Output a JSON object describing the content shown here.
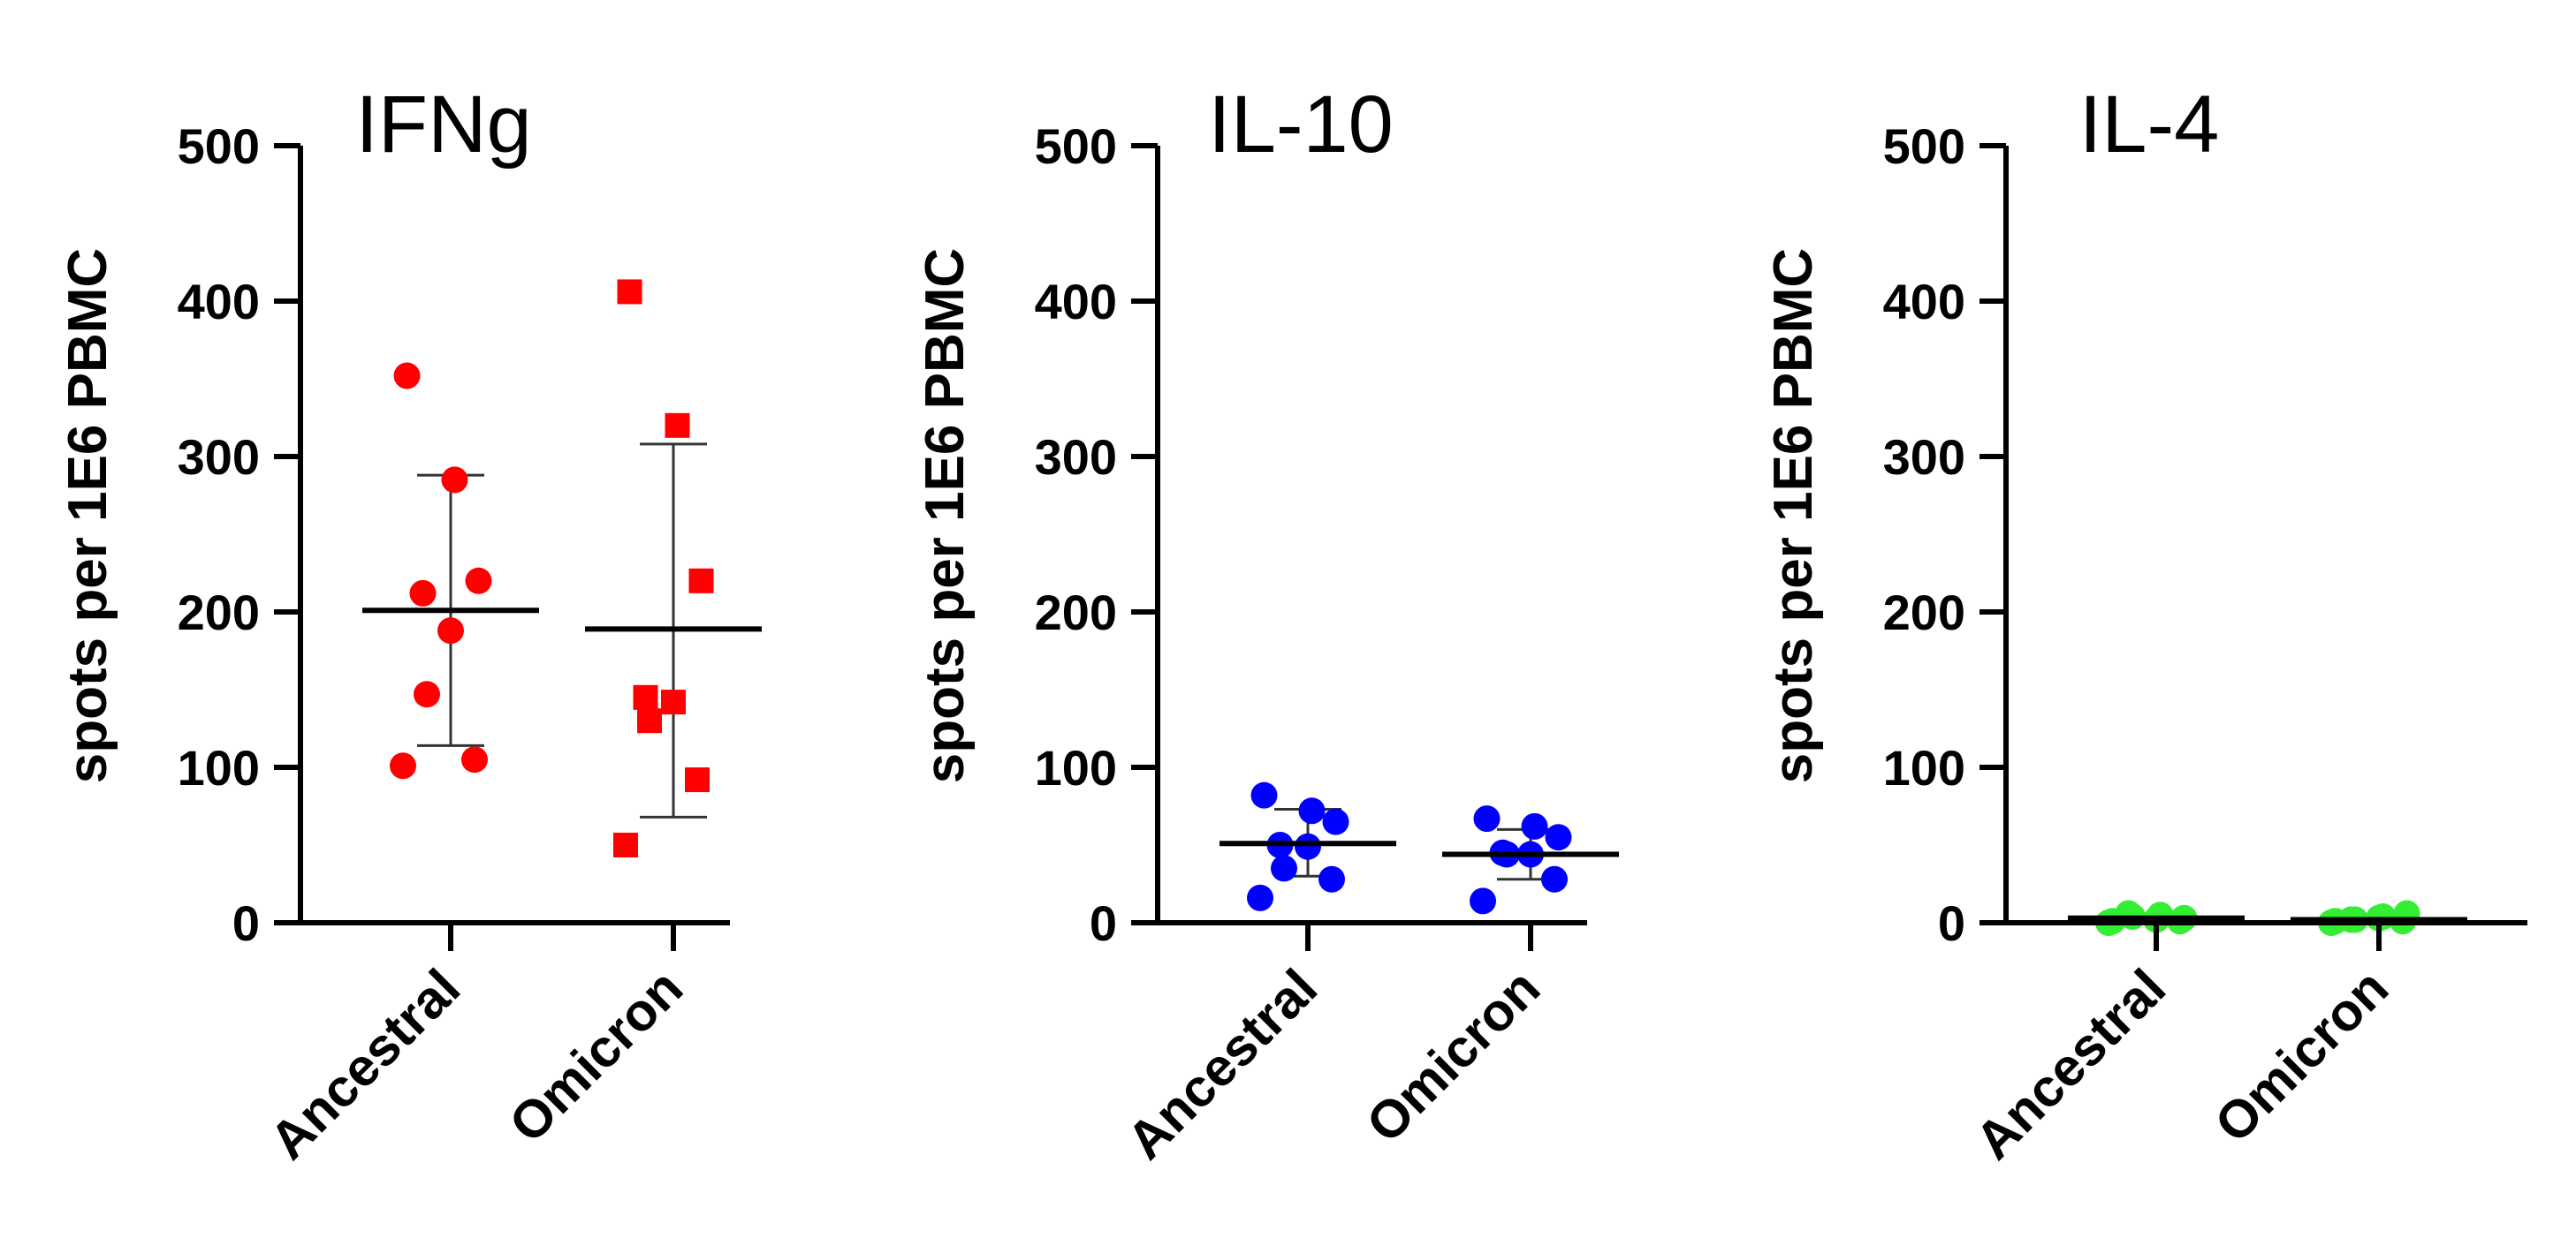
{
  "chart_data": [
    {
      "type": "scatter",
      "title": "IFNg",
      "ylabel": "spots per 1E6 PBMC",
      "xlabel": "",
      "ylim": [
        0,
        500
      ],
      "yticks": [
        0,
        100,
        200,
        300,
        400,
        500
      ],
      "categories": [
        "Ancestral",
        "Omicron"
      ],
      "color": "#ff0000",
      "series": [
        {
          "name": "Ancestral",
          "marker": "circle",
          "values": [
            352,
            285,
            220,
            212,
            188,
            147,
            105,
            101
          ],
          "mean": 201,
          "sd_low": 114,
          "sd_high": 288
        },
        {
          "name": "Omicron",
          "marker": "square",
          "values": [
            406,
            320,
            220,
            145,
            142,
            130,
            92,
            50
          ],
          "mean": 189,
          "sd_low": 68,
          "sd_high": 308
        }
      ]
    },
    {
      "type": "scatter",
      "title": "IL-10",
      "ylabel": "spots per 1E6 PBMC",
      "xlabel": "",
      "ylim": [
        0,
        500
      ],
      "yticks": [
        0,
        100,
        200,
        300,
        400,
        500
      ],
      "categories": [
        "Ancestral",
        "Omicron"
      ],
      "color": "#0000ff",
      "series": [
        {
          "name": "Ancestral",
          "marker": "circle",
          "values": [
            82,
            72,
            65,
            50,
            49,
            35,
            28,
            16
          ],
          "mean": 51,
          "sd_low": 30,
          "sd_high": 73
        },
        {
          "name": "Omicron",
          "marker": "circle",
          "values": [
            67,
            62,
            55,
            45,
            44,
            44,
            28,
            14
          ],
          "mean": 44,
          "sd_low": 28,
          "sd_high": 60
        }
      ]
    },
    {
      "type": "scatter",
      "title": "IL-4",
      "ylabel": "spots per 1E6 PBMC",
      "xlabel": "",
      "ylim": [
        0,
        500
      ],
      "yticks": [
        0,
        100,
        200,
        300,
        400,
        500
      ],
      "categories": [
        "Ancestral",
        "Omicron"
      ],
      "color": "#33ee33",
      "series": [
        {
          "name": "Ancestral",
          "marker": "circle",
          "values": [
            1,
            5,
            3,
            6,
            2,
            4,
            1,
            0
          ],
          "mean": 3,
          "sd_low": 1,
          "sd_high": 5
        },
        {
          "name": "Omicron",
          "marker": "circle",
          "values": [
            1,
            4,
            6,
            2,
            3,
            2,
            1,
            0
          ],
          "mean": 2,
          "sd_low": 1,
          "sd_high": 4
        }
      ]
    }
  ]
}
